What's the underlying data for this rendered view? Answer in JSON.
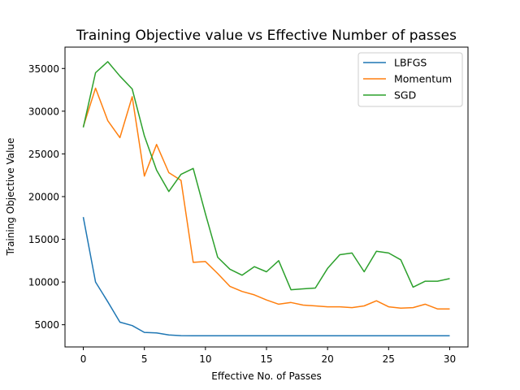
{
  "chart_data": {
    "type": "line",
    "title": "Training Objective value vs Effective Number of passes",
    "xlabel": "Effective No. of Passes",
    "ylabel": "Training Objective Value",
    "xlim": [
      -1.5,
      31.5
    ],
    "ylim": [
      2400,
      37500
    ],
    "xticks": [
      0,
      5,
      10,
      15,
      20,
      25,
      30
    ],
    "yticks": [
      5000,
      10000,
      15000,
      20000,
      25000,
      30000,
      35000
    ],
    "grid": false,
    "legend_position": "top-right",
    "series": [
      {
        "name": "LBFGS",
        "color": "#1f77b4",
        "x": [
          0,
          1,
          2,
          3,
          4,
          5,
          6,
          7,
          8,
          9,
          10,
          11,
          12,
          13,
          14,
          15,
          16,
          17,
          18,
          19,
          20,
          21,
          22,
          23,
          24,
          25,
          26,
          27,
          28,
          29,
          30
        ],
        "values": [
          17600,
          10000,
          7700,
          5300,
          4900,
          4100,
          4050,
          3800,
          3720,
          3700,
          3700,
          3700,
          3700,
          3700,
          3700,
          3700,
          3700,
          3700,
          3700,
          3700,
          3700,
          3700,
          3700,
          3700,
          3700,
          3700,
          3700,
          3700,
          3700,
          3700,
          3700
        ]
      },
      {
        "name": "Momentum",
        "color": "#ff7f0e",
        "x": [
          0,
          1,
          2,
          3,
          4,
          5,
          6,
          7,
          8,
          9,
          10,
          11,
          12,
          13,
          14,
          15,
          16,
          17,
          18,
          19,
          20,
          21,
          22,
          23,
          24,
          25,
          26,
          27,
          28,
          29,
          30
        ],
        "values": [
          28200,
          32700,
          28900,
          26900,
          31700,
          22400,
          26100,
          22800,
          21900,
          12300,
          12400,
          11000,
          9500,
          8900,
          8500,
          7900,
          7400,
          7600,
          7300,
          7200,
          7100,
          7100,
          7000,
          7200,
          7800,
          7100,
          6950,
          7000,
          7400,
          6850,
          6850
        ]
      },
      {
        "name": "SGD",
        "color": "#2ca02c",
        "x": [
          0,
          1,
          2,
          3,
          4,
          5,
          6,
          7,
          8,
          9,
          10,
          11,
          12,
          13,
          14,
          15,
          16,
          17,
          18,
          19,
          20,
          21,
          22,
          23,
          24,
          25,
          26,
          27,
          28,
          29,
          30
        ],
        "values": [
          28100,
          34500,
          35800,
          34100,
          32600,
          27100,
          23100,
          20600,
          22600,
          23300,
          18000,
          12900,
          11500,
          10800,
          11800,
          11200,
          12500,
          9100,
          9200,
          9300,
          11600,
          13200,
          13400,
          11200,
          13600,
          13400,
          12600,
          9400,
          10100,
          10100,
          10400
        ]
      }
    ]
  }
}
